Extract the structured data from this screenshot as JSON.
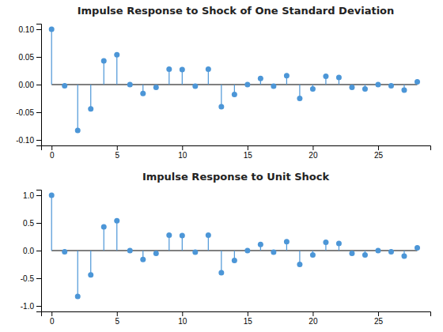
{
  "chart_data": [
    {
      "type": "stem",
      "title": "Impulse Response to Shock of One Standard Deviation",
      "x": [
        0,
        1,
        2,
        3,
        4,
        5,
        6,
        7,
        8,
        9,
        10,
        11,
        12,
        13,
        14,
        15,
        16,
        17,
        18,
        19,
        20,
        21,
        22,
        23,
        24,
        25,
        26,
        27,
        28
      ],
      "values": [
        0.1,
        -0.002,
        -0.083,
        -0.044,
        0.043,
        0.054,
        0.0,
        -0.016,
        -0.005,
        0.028,
        0.027,
        -0.003,
        0.028,
        -0.04,
        -0.018,
        0.0,
        0.011,
        -0.003,
        0.016,
        -0.025,
        -0.008,
        0.015,
        0.013,
        -0.005,
        -0.008,
        0.0,
        -0.002,
        -0.01,
        0.005
      ],
      "color": "#4C96D7",
      "xlim": [
        -0.8,
        29.0
      ],
      "ylim": [
        -0.11,
        0.11
      ],
      "xticks": [
        0,
        5,
        10,
        15,
        20,
        25
      ],
      "yticks": [
        {
          "value": -0.1,
          "label": "-0.10"
        },
        {
          "value": -0.05,
          "label": "-0.05"
        },
        {
          "value": 0,
          "label": "0.00"
        },
        {
          "value": 0.05,
          "label": "0.05"
        },
        {
          "value": 0.1,
          "label": "0.10"
        }
      ],
      "grid": false
    },
    {
      "type": "stem",
      "title": "Impulse Response to Unit Shock",
      "x": [
        0,
        1,
        2,
        3,
        4,
        5,
        6,
        7,
        8,
        9,
        10,
        11,
        12,
        13,
        14,
        15,
        16,
        17,
        18,
        19,
        20,
        21,
        22,
        23,
        24,
        25,
        26,
        27,
        28
      ],
      "values": [
        1.0,
        -0.02,
        -0.83,
        -0.44,
        0.43,
        0.54,
        0.0,
        -0.16,
        -0.05,
        0.28,
        0.27,
        -0.03,
        0.28,
        -0.4,
        -0.18,
        0.0,
        0.11,
        -0.03,
        0.16,
        -0.25,
        -0.08,
        0.15,
        0.13,
        -0.05,
        -0.08,
        0.0,
        -0.02,
        -0.1,
        0.05
      ],
      "color": "#4C96D7",
      "xlim": [
        -0.8,
        29.0
      ],
      "ylim": [
        -1.1,
        1.1
      ],
      "xticks": [
        0,
        5,
        10,
        15,
        20,
        25
      ],
      "yticks": [
        {
          "value": -1,
          "label": "-1.0"
        },
        {
          "value": -0.5,
          "label": "-0.5"
        },
        {
          "value": 0,
          "label": "0.0"
        },
        {
          "value": 0.5,
          "label": "0.5"
        },
        {
          "value": 1,
          "label": "1.0"
        }
      ],
      "grid": false
    }
  ]
}
